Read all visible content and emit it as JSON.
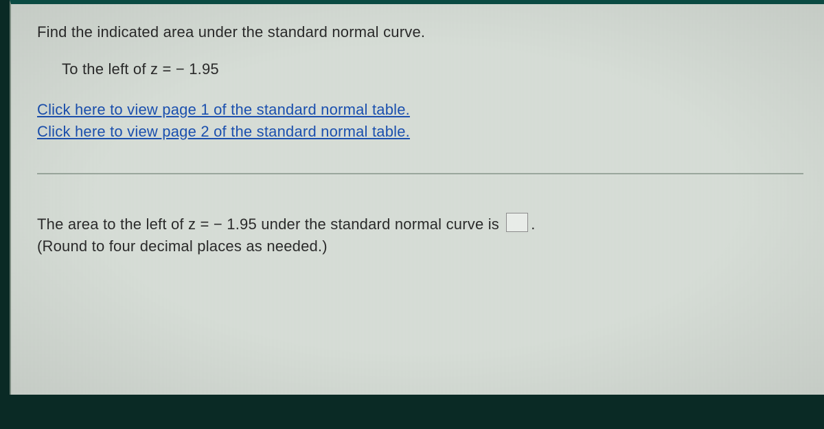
{
  "question": {
    "prompt": "Find the indicated area under the standard normal curve.",
    "condition_prefix": "To the left of z = ",
    "z_value": "− 1.95"
  },
  "links": {
    "page1": "Click here to view page 1 of the standard normal table.",
    "page2": "Click here to view page 2 of the standard normal table."
  },
  "answer": {
    "sentence_prefix": "The area to the left of z = ",
    "z_value": "− 1.95",
    "sentence_suffix": " under the standard normal curve is ",
    "period": ".",
    "rounding_note": "(Round to four decimal places as needed.)"
  }
}
